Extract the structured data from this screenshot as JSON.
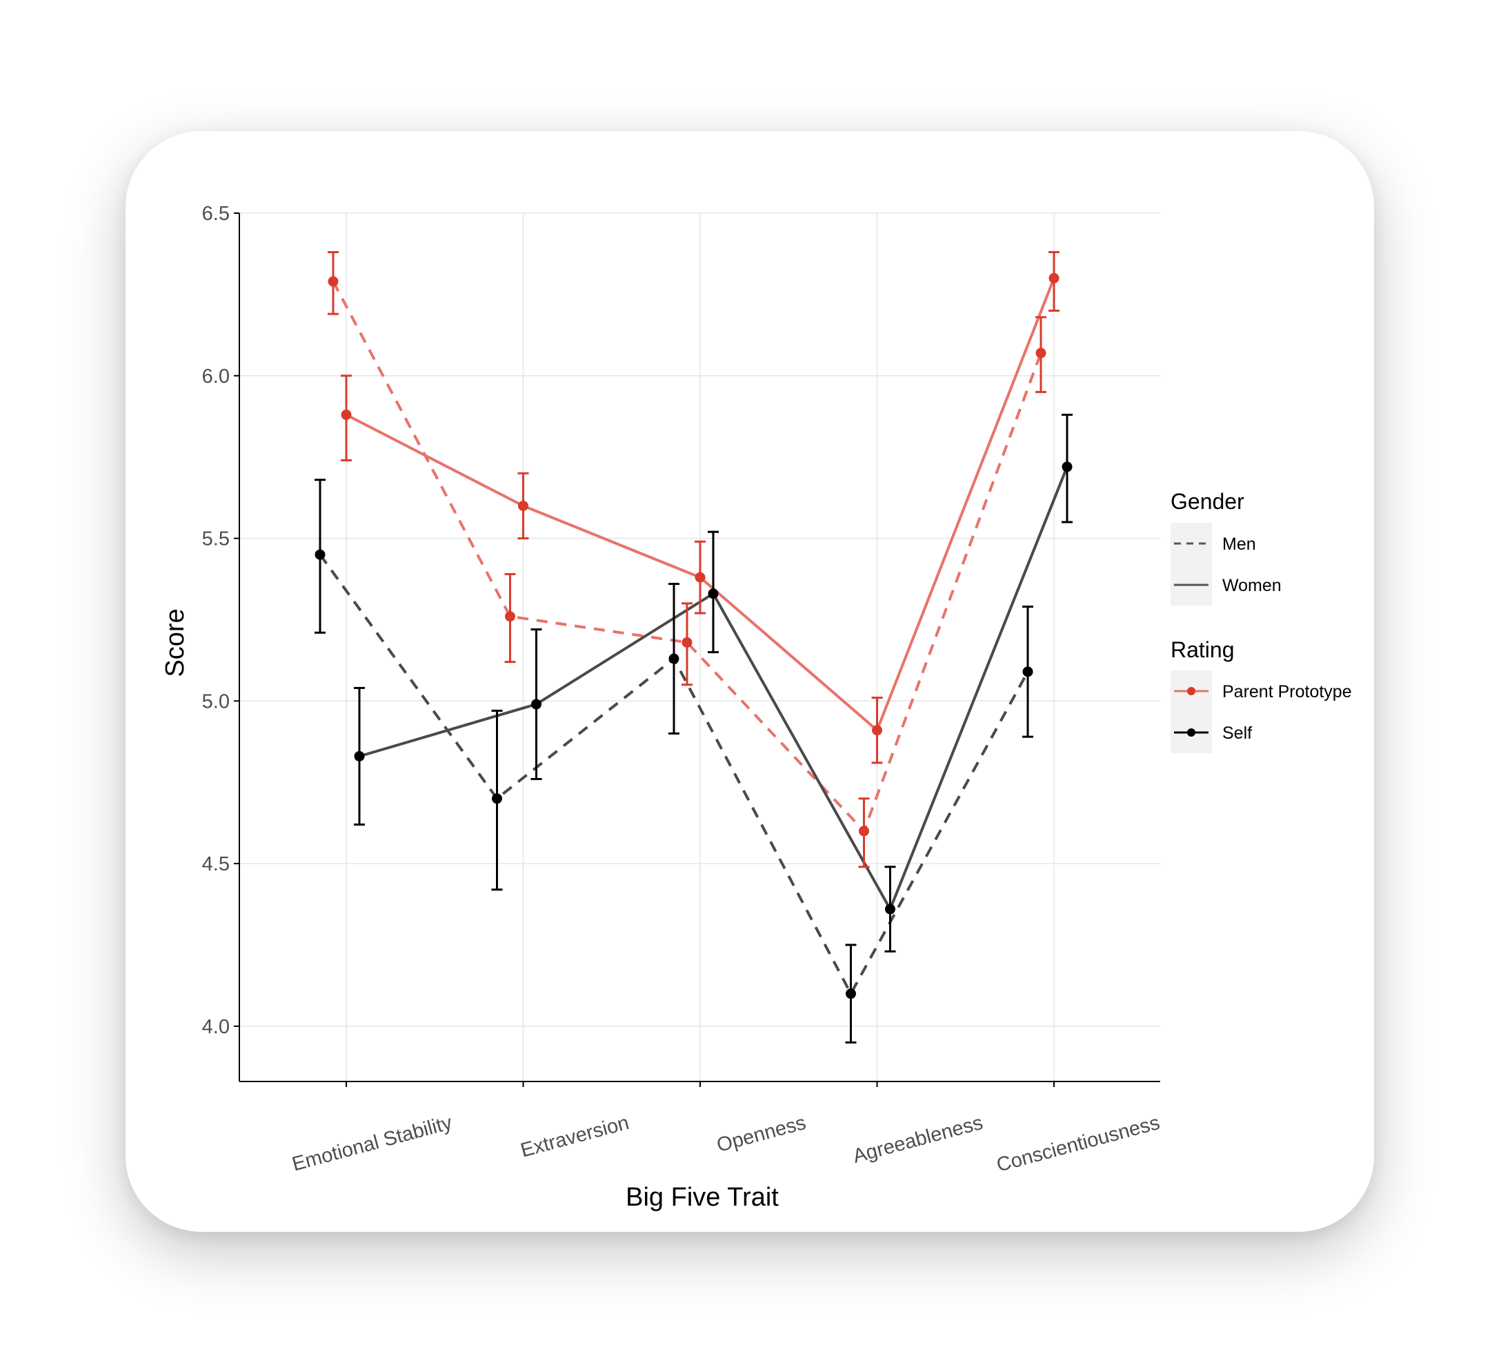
{
  "chart_data": {
    "type": "line",
    "xlabel": "Big Five Trait",
    "ylabel": "Score",
    "categories": [
      "Emotional Stability",
      "Extraversion",
      "Openness",
      "Agreeableness",
      "Conscientiousness"
    ],
    "ylim": [
      3.83,
      6.5
    ],
    "yticks": [
      4.0,
      4.5,
      5.0,
      5.5,
      6.0,
      6.5
    ],
    "ytick_labels": [
      "4.0",
      "4.5",
      "5.0",
      "5.5",
      "6.0",
      "6.5"
    ],
    "grid": true,
    "legend": {
      "placement": "right",
      "groups": [
        {
          "title": "Gender",
          "entries": [
            {
              "label": "Men",
              "linetype": "dashed"
            },
            {
              "label": "Women",
              "linetype": "solid"
            }
          ]
        },
        {
          "title": "Rating",
          "entries": [
            {
              "label": "Parent Prototype",
              "color": "#d93a2b"
            },
            {
              "label": "Self",
              "color": "#000000"
            }
          ]
        }
      ]
    },
    "colors": {
      "parent_point": "#d93a2b",
      "parent_line": "#e8736a",
      "self_point": "#000000",
      "self_line": "#4a4a4a",
      "grid": "#e6e6e6"
    },
    "series": [
      {
        "gender": "Men",
        "rating": "Parent Prototype",
        "linetype": "dashed",
        "dodge": -1,
        "values": [
          6.29,
          5.26,
          5.18,
          4.6,
          6.07
        ],
        "lower": [
          6.19,
          5.12,
          5.05,
          4.49,
          5.95
        ],
        "upper": [
          6.38,
          5.39,
          5.3,
          4.7,
          6.18
        ]
      },
      {
        "gender": "Women",
        "rating": "Parent Prototype",
        "linetype": "solid",
        "dodge": 0,
        "values": [
          5.88,
          5.6,
          5.38,
          4.91,
          6.3
        ],
        "lower": [
          5.74,
          5.5,
          5.27,
          4.81,
          6.2
        ],
        "upper": [
          6.0,
          5.7,
          5.49,
          5.01,
          6.38
        ]
      },
      {
        "gender": "Men",
        "rating": "Self",
        "linetype": "dashed",
        "dodge": -2,
        "values": [
          5.45,
          4.7,
          5.13,
          4.1,
          5.09
        ],
        "lower": [
          5.21,
          4.42,
          4.9,
          3.95,
          4.89
        ],
        "upper": [
          5.68,
          4.97,
          5.36,
          4.25,
          5.29
        ]
      },
      {
        "gender": "Women",
        "rating": "Self",
        "linetype": "solid",
        "dodge": 1,
        "values": [
          4.83,
          4.99,
          5.33,
          4.36,
          5.72
        ],
        "lower": [
          4.62,
          4.76,
          5.15,
          4.23,
          5.55
        ],
        "upper": [
          5.04,
          5.22,
          5.52,
          4.49,
          5.88
        ]
      }
    ]
  }
}
